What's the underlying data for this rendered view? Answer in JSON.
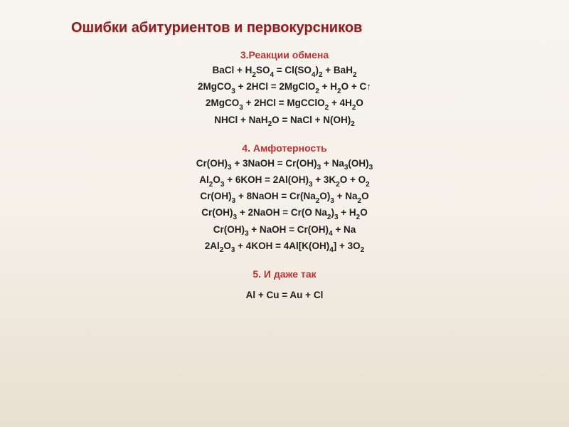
{
  "title": "Ошибки абитуриентов и первокурсников",
  "colors": {
    "title": "#8b2020",
    "section_title": "#c03030",
    "equation_text": "#202020",
    "bg_top": "#f8f5f0",
    "bg_bottom": "#e8dfd0"
  },
  "fontsize": {
    "title": 20,
    "section_title": 14,
    "equation": 13.5
  },
  "sections": [
    {
      "title": "3.Реакции обмена",
      "equations": [
        "BaCl + H_2_SO_4_ = Cl(SO_4_)_2_ + BaH_2_",
        "2MgCO_3_ + 2HCl  = 2MgClO_2_ + H_2_O + C↑",
        "2MgCO_3_ + 2HCl = MgCClO_2_ + 4H_2_O",
        "NHCl + NaH_2_O = NaCl + N(OH)_2_"
      ]
    },
    {
      "title": "4. Амфотерность",
      "equations": [
        "Cr(OH)_3_ + 3NaOH = Cr(OH)_3_ + Na_3_(OH)_3_",
        "Al_2_O_3_ + 6KOH = 2Al(OH)_3_ + 3K_2_O + O_2_",
        "Cr(OH)_3_ + 8NaOH = Cr(Na_2_O)_3_ + Na_2_O",
        "Cr(OH)_3_ + 2NaOH = Cr(O Na_2_)_3_ + H_2_O",
        "Cr(OH)_3_ + NaOH = Cr(OH)_4_ + Na",
        "2Al_2_O_3_ + 4KOH = 4Al[K(OH)_4_] + 3O_2_"
      ]
    },
    {
      "title": "5. И даже так",
      "equations": [
        "Al + Cu = Au + Cl"
      ]
    }
  ]
}
